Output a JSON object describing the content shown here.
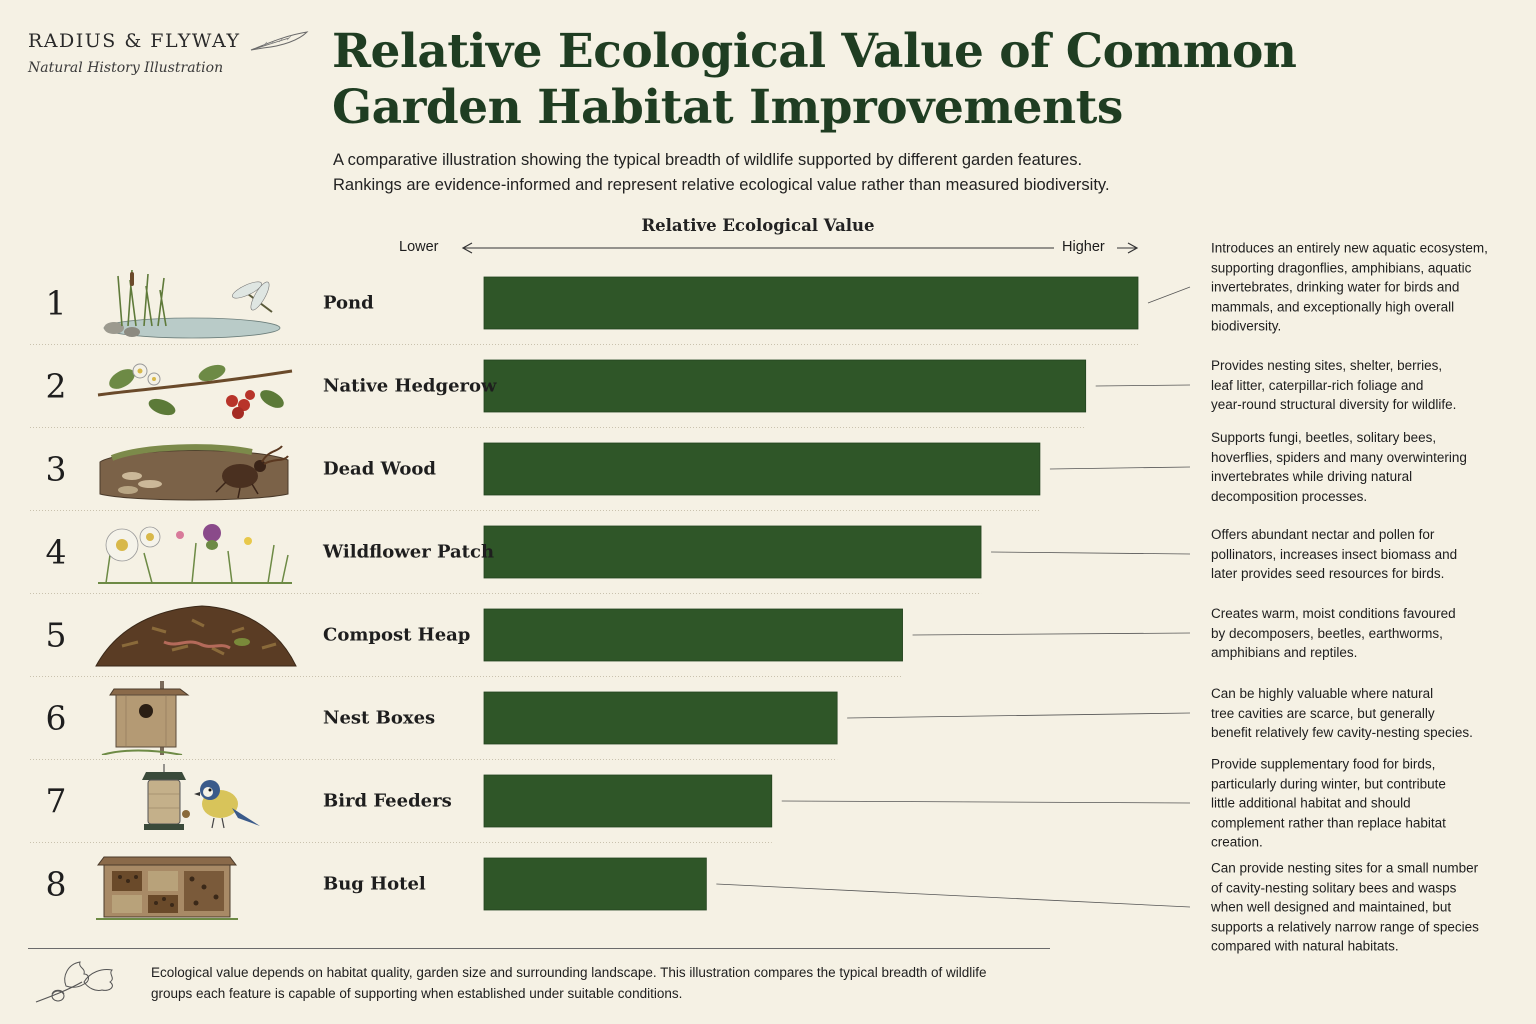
{
  "brand": {
    "name": "RADIUS & FLYWAY",
    "tagline": "Natural History Illustration",
    "icon": "feather-icon"
  },
  "header": {
    "title_line1": "Relative Ecological Value of Common",
    "title_line2": "Garden Habitat Improvements",
    "subtitle_line1": "A comparative illustration showing the typical breadth of wildlife supported by different garden features.",
    "subtitle_line2": "Rankings are evidence-informed and represent relative ecological value rather than measured biodiversity."
  },
  "colors": {
    "bar": "#2f5628",
    "title": "#1f3d22",
    "background": "#f5f1e4",
    "leader": "#555555"
  },
  "chart_data": {
    "type": "bar",
    "orientation": "horizontal",
    "title": "Relative Ecological Value",
    "axis_low_label": "Lower",
    "axis_high_label": "Higher",
    "categories": [
      "Pond",
      "Native Hedgerow",
      "Dead Wood",
      "Wildflower Patch",
      "Compost Heap",
      "Nest Boxes",
      "Bird Feeders",
      "Bug Hotel"
    ],
    "ranks": [
      "1",
      "2",
      "3",
      "4",
      "5",
      "6",
      "7",
      "8"
    ],
    "values": [
      100,
      92,
      85,
      76,
      64,
      54,
      44,
      34
    ],
    "xlim": [
      0,
      100
    ],
    "icons": [
      "pond-dragonfly-icon",
      "hedgerow-berries-icon",
      "dead-wood-beetle-icon",
      "wildflower-icon",
      "compost-heap-icon",
      "nest-box-icon",
      "bird-feeder-icon",
      "bug-hotel-icon"
    ],
    "descriptions": [
      [
        "Introduces an entirely new aquatic ecosystem,",
        "supporting dragonflies, amphibians, aquatic",
        "invertebrates, drinking water for birds and",
        "mammals, and exceptionally high overall",
        "biodiversity."
      ],
      [
        "Provides nesting sites, shelter, berries,",
        "leaf litter, caterpillar-rich foliage and",
        "year-round structural diversity for wildlife."
      ],
      [
        "Supports fungi, beetles, solitary bees,",
        "hoverflies, spiders and many overwintering",
        "invertebrates while driving natural",
        "decomposition processes."
      ],
      [
        "Offers abundant nectar and pollen for",
        "pollinators, increases insect biomass and",
        "later provides seed resources for birds."
      ],
      [
        "Creates warm, moist conditions favoured",
        "by decomposers, beetles, earthworms,",
        "amphibians and reptiles."
      ],
      [
        "Can be highly valuable where natural",
        "tree cavities are scarce, but generally",
        "benefit relatively few cavity-nesting species."
      ],
      [
        "Provide supplementary food for birds,",
        "particularly during winter, but contribute",
        "little additional habitat and should",
        "complement rather than replace habitat",
        "creation."
      ],
      [
        "Can provide nesting sites for a small number",
        "of cavity-nesting solitary bees and wasps",
        "when well designed and maintained, but",
        "supports a relatively narrow range of species",
        "compared with natural habitats."
      ]
    ]
  },
  "footer": {
    "line1": "Ecological value depends on habitat quality, garden size and surrounding landscape. This illustration compares the typical breadth of wildlife",
    "line2": "groups each feature is capable of supporting when established under suitable conditions.",
    "icon": "oak-leaf-acorn-icon"
  }
}
